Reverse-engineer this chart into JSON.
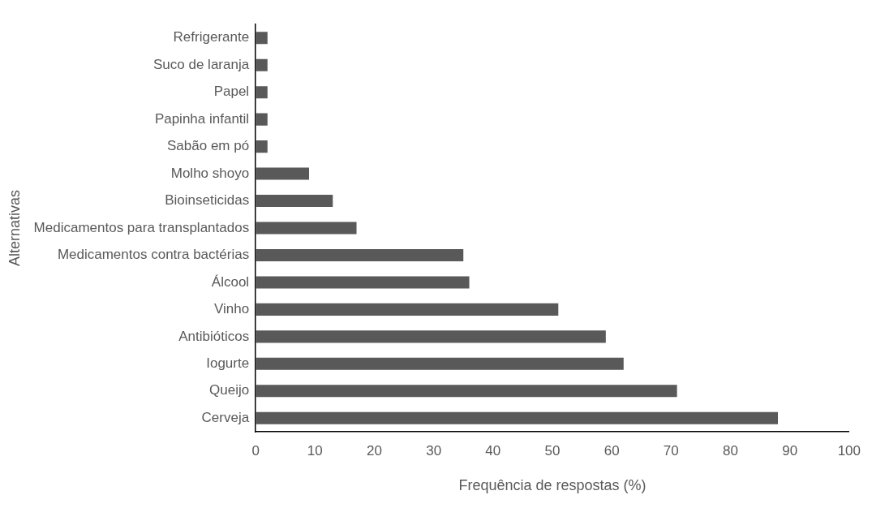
{
  "chart_data": {
    "type": "bar",
    "orientation": "horizontal",
    "xlabel": "Frequência de respostas (%)",
    "ylabel": "Alternativas",
    "categories": [
      "Refrigerante",
      "Suco de laranja",
      "Papel",
      "Papinha infantil",
      "Sabão em pó",
      "Molho shoyo",
      "Bioinseticidas",
      "Medicamentos para transplantados",
      "Medicamentos contra bactérias",
      "Álcool",
      "Vinho",
      "Antibióticos",
      "Iogurte",
      "Queijo",
      "Cerveja"
    ],
    "values": [
      2,
      2,
      2,
      2,
      2,
      9,
      13,
      17,
      35,
      36,
      51,
      59,
      62,
      71,
      88
    ],
    "color": "#595959",
    "xlim": [
      0,
      100
    ],
    "xticks": [
      0,
      10,
      20,
      30,
      40,
      50,
      60,
      70,
      80,
      90,
      100
    ],
    "grid": false,
    "legend": false
  }
}
